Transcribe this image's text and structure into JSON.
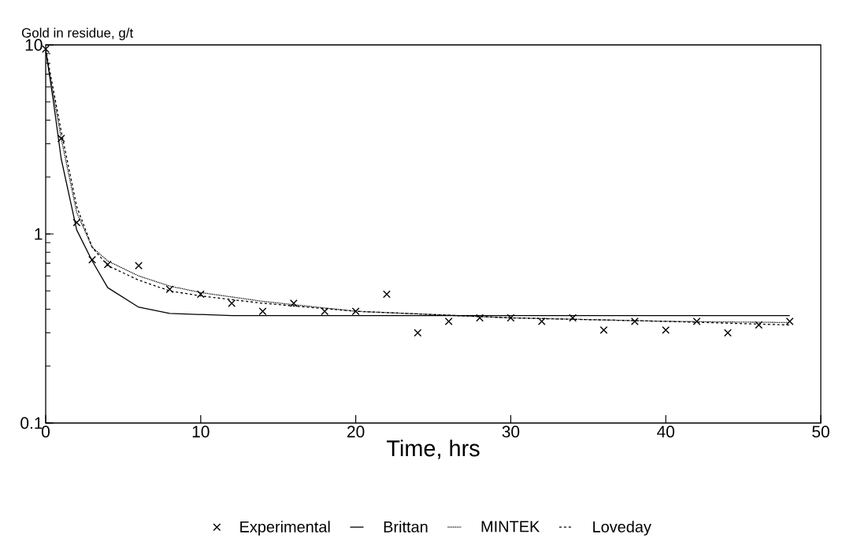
{
  "chart_data": {
    "type": "line",
    "xlabel": "Time, hrs",
    "ylabel": "Gold in residue, g/t",
    "log": "y",
    "xlim": [
      0,
      50
    ],
    "xticks": [
      0,
      10,
      20,
      30,
      40,
      50
    ],
    "ylim": [
      0.1,
      10
    ],
    "yticks": [
      0.1,
      1,
      10
    ],
    "legend": "bottom",
    "grid": false,
    "series": [
      {
        "name": "Experimental",
        "type": "scatter",
        "marker": "cross",
        "color": "#000000",
        "x": [
          0,
          1,
          2,
          3,
          4,
          6,
          8,
          10,
          12,
          14,
          16,
          18,
          20,
          22,
          24,
          26,
          28,
          30,
          32,
          34,
          36,
          38,
          40,
          42,
          44,
          46,
          48
        ],
        "values": [
          9.5,
          3.2,
          1.15,
          0.73,
          0.69,
          0.68,
          0.51,
          0.48,
          0.43,
          0.39,
          0.43,
          0.39,
          0.39,
          0.48,
          0.3,
          0.345,
          0.36,
          0.36,
          0.345,
          0.36,
          0.31,
          0.345,
          0.31,
          0.345,
          0.3,
          0.33,
          0.345
        ]
      },
      {
        "name": "Brittan",
        "line_style": "solid",
        "color": "#000000",
        "x": [
          0,
          0.5,
          1,
          2,
          3,
          4,
          6,
          8,
          12,
          20,
          30,
          40,
          48
        ],
        "values": [
          9.5,
          5,
          2.5,
          1.05,
          0.72,
          0.52,
          0.41,
          0.38,
          0.37,
          0.37,
          0.37,
          0.37,
          0.37
        ]
      },
      {
        "name": "MINTEK",
        "line_style": "dotted",
        "color": "#000000",
        "x": [
          0,
          1,
          2,
          3,
          4,
          6,
          8,
          10,
          14,
          20,
          30,
          40,
          48
        ],
        "values": [
          9.2,
          3.2,
          1.3,
          0.85,
          0.72,
          0.6,
          0.53,
          0.49,
          0.44,
          0.39,
          0.36,
          0.345,
          0.34
        ]
      },
      {
        "name": "Loveday",
        "line_style": "dashed",
        "color": "#000000",
        "x": [
          0,
          1,
          2,
          3,
          4,
          6,
          8,
          10,
          14,
          20,
          30,
          40,
          48
        ],
        "values": [
          9.5,
          3.5,
          1.4,
          0.85,
          0.68,
          0.57,
          0.5,
          0.47,
          0.43,
          0.39,
          0.36,
          0.345,
          0.33
        ]
      }
    ]
  }
}
